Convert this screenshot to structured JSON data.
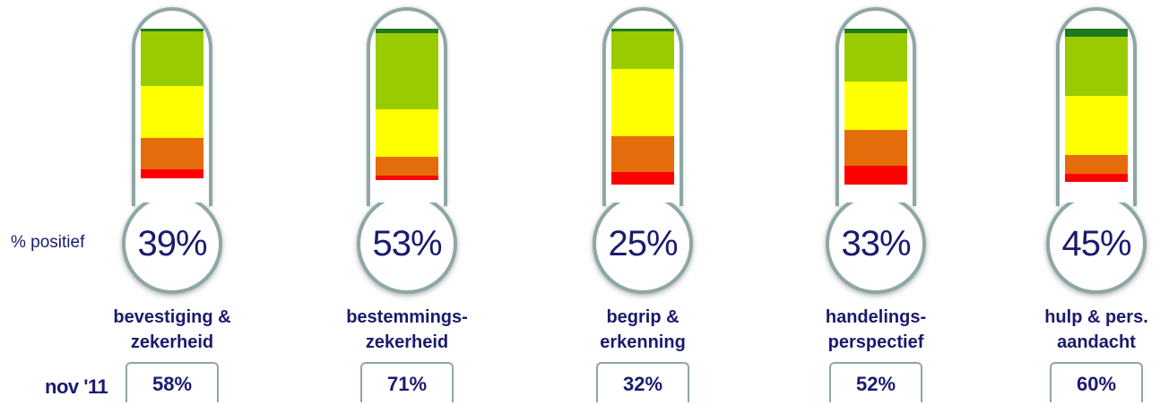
{
  "labels": {
    "positive": "% positief",
    "previous_period": "nov '11"
  },
  "colors": {
    "dark_green": "#1e7a1e",
    "green": "#99cc00",
    "yellow": "#ffff00",
    "orange": "#e46c0a",
    "red": "#ff0000",
    "text": "#1a1a6e"
  },
  "chart_data": {
    "type": "bar",
    "stacked": true,
    "categories": [
      [
        "bevestiging &",
        "zekerheid"
      ],
      [
        "bestemmings-",
        "zekerheid"
      ],
      [
        "begrip &",
        "erkenning"
      ],
      [
        "handelings-",
        "perspectief"
      ],
      [
        "hulp & pers.",
        "aandacht"
      ]
    ],
    "value_labels": [
      "39%",
      "53%",
      "25%",
      "33%",
      "45%"
    ],
    "previous_labels": [
      "58%",
      "71%",
      "32%",
      "52%",
      "60%"
    ],
    "segment_order": [
      "dark_green",
      "green",
      "yellow",
      "orange",
      "red"
    ],
    "segments": [
      [
        2,
        35,
        33,
        20,
        6
      ],
      [
        3,
        49,
        30,
        12,
        3
      ],
      [
        2,
        24,
        43,
        23,
        8
      ],
      [
        3,
        31,
        31,
        23,
        12
      ],
      [
        5,
        38,
        38,
        12,
        5
      ]
    ],
    "ylim": [
      0,
      100
    ]
  }
}
